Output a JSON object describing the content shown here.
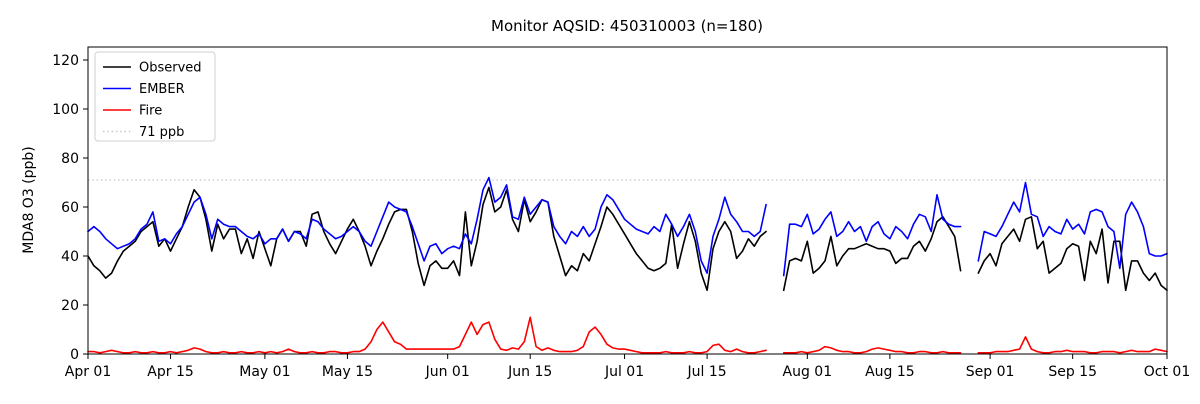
{
  "figure": {
    "title": "Monitor AQSID: 450310003 (n=180)"
  },
  "chart_data": {
    "type": "line",
    "title": "Monitor AQSID: 450310003 (n=180)",
    "xlabel": "",
    "ylabel": "MDA8 O3 (ppb)",
    "ylim": [
      0,
      125.3
    ],
    "yticks": [
      0,
      20,
      40,
      60,
      80,
      100,
      120
    ],
    "grid": false,
    "legend_position": "upper left",
    "x_start_label": "Apr 01",
    "x_end_label": "Oct 01",
    "n_days": 184,
    "x_tick_labels": [
      "Apr 01",
      "Apr 15",
      "May 01",
      "May 15",
      "Jun 01",
      "Jun 15",
      "Jul 01",
      "Jul 15",
      "Aug 01",
      "Aug 15",
      "Sep 01",
      "Sep 15",
      "Oct 01"
    ],
    "x_tick_days": [
      0,
      14,
      30,
      44,
      61,
      75,
      91,
      105,
      122,
      136,
      153,
      167,
      183
    ],
    "threshold": {
      "label": "71 ppb",
      "value": 71,
      "color": "#c9c9c9",
      "style": "dotted"
    },
    "legend_entries": [
      "Observed",
      "EMBER",
      "Fire",
      "71 ppb"
    ],
    "series": [
      {
        "name": "Observed",
        "color": "#000000",
        "values": [
          40,
          36,
          34,
          31,
          33,
          38,
          42,
          44,
          46,
          50,
          52,
          54,
          44,
          47,
          42,
          47,
          52,
          60,
          67,
          64,
          55,
          42,
          53,
          47,
          51,
          51,
          41,
          47,
          39,
          50,
          43,
          36,
          47,
          51,
          46,
          50,
          50,
          44,
          57,
          58,
          50,
          45,
          41,
          46,
          51,
          55,
          50,
          44,
          36,
          42,
          47,
          53,
          58,
          59,
          59,
          50,
          37,
          28,
          36,
          38,
          35,
          35,
          38,
          32,
          58,
          36,
          46,
          61,
          68,
          58,
          60,
          67,
          55,
          50,
          63,
          54,
          58,
          63,
          62,
          48,
          40,
          32,
          36,
          34,
          41,
          38,
          45,
          52,
          60,
          57,
          53,
          49,
          45,
          41,
          38,
          35,
          34,
          35,
          37,
          53,
          35,
          45,
          54,
          46,
          33,
          26,
          43,
          50,
          54,
          50,
          39,
          42,
          47,
          44,
          48,
          50,
          null,
          null,
          26,
          38,
          39,
          38,
          46,
          33,
          35,
          38,
          48,
          36,
          40,
          43,
          43,
          44,
          45,
          44,
          43,
          43,
          42,
          37,
          39,
          39,
          44,
          46,
          42,
          47,
          54,
          56,
          52,
          48,
          34,
          null,
          null,
          33,
          38,
          41,
          36,
          45,
          48,
          51,
          46,
          55,
          56,
          43,
          46,
          33,
          35,
          37,
          43,
          45,
          44,
          30,
          46,
          41,
          51,
          29,
          46,
          46,
          26,
          38,
          38,
          33,
          30,
          33,
          28,
          26
        ]
      },
      {
        "name": "EMBER",
        "color": "#0000ff",
        "values": [
          50,
          52,
          50,
          47,
          45,
          43,
          44,
          45,
          47,
          51,
          53,
          58,
          46,
          47,
          45,
          49,
          52,
          57,
          62,
          64,
          57,
          47,
          55,
          53,
          52,
          52,
          50,
          48,
          47,
          49,
          45,
          47,
          47,
          51,
          46,
          50,
          49,
          47,
          55,
          54,
          51,
          49,
          47,
          48,
          50,
          52,
          50,
          46,
          44,
          50,
          56,
          62,
          60,
          59,
          58,
          52,
          45,
          38,
          44,
          45,
          41,
          43,
          44,
          43,
          49,
          45,
          55,
          67,
          72,
          62,
          64,
          69,
          56,
          55,
          64,
          57,
          60,
          63,
          62,
          52,
          48,
          45,
          50,
          48,
          52,
          48,
          51,
          60,
          65,
          63,
          59,
          55,
          53,
          51,
          50,
          49,
          52,
          50,
          57,
          53,
          48,
          52,
          57,
          50,
          38,
          33,
          48,
          55,
          64,
          57,
          54,
          50,
          50,
          48,
          50,
          61,
          null,
          null,
          32,
          53,
          53,
          52,
          57,
          49,
          51,
          55,
          58,
          48,
          50,
          54,
          50,
          52,
          46,
          52,
          54,
          49,
          47,
          52,
          50,
          47,
          53,
          57,
          56,
          50,
          65,
          55,
          53,
          52,
          52,
          null,
          null,
          38,
          50,
          49,
          48,
          52,
          57,
          62,
          58,
          70,
          57,
          56,
          48,
          52,
          50,
          49,
          55,
          51,
          53,
          49,
          58,
          59,
          58,
          52,
          50,
          35,
          57,
          62,
          58,
          52,
          41,
          40,
          40,
          41
        ]
      },
      {
        "name": "Fire",
        "color": "#ff0000",
        "values": [
          1,
          1,
          0.5,
          1,
          1.5,
          1,
          0.5,
          0.5,
          1,
          0.5,
          0.5,
          1,
          0.5,
          0.5,
          1,
          0.5,
          1,
          1.5,
          2.5,
          2,
          1,
          0.5,
          0.5,
          1,
          0.5,
          0.5,
          1,
          0.5,
          0.5,
          1,
          0.5,
          1,
          0.5,
          1,
          2,
          1,
          0.5,
          0.5,
          1,
          0.5,
          0.5,
          1,
          1,
          0.5,
          0.5,
          1,
          1,
          2,
          5,
          10,
          13,
          9,
          5,
          4,
          2,
          2,
          2,
          2,
          2,
          2,
          2,
          2,
          2,
          3,
          8,
          13,
          8,
          12,
          13,
          6,
          2,
          1.5,
          2.5,
          2,
          5,
          15,
          3,
          1.5,
          2.5,
          1.5,
          1,
          1,
          1,
          1.5,
          3,
          9,
          11,
          8,
          4,
          2.5,
          2,
          2,
          1.5,
          1,
          0.5,
          0.5,
          0.5,
          0.5,
          1,
          0.5,
          0.5,
          0.5,
          1,
          0.5,
          0.5,
          1,
          3.5,
          4,
          1.5,
          1,
          2,
          1,
          0.5,
          0.5,
          1,
          1.5,
          null,
          null,
          0.5,
          0.5,
          0.5,
          1,
          0.5,
          1,
          1.5,
          3,
          2.5,
          1.5,
          1,
          1,
          0.5,
          0.5,
          1,
          2,
          2.5,
          2,
          1.5,
          1,
          1,
          0.5,
          0.5,
          1,
          1,
          0.5,
          0.5,
          1,
          0.5,
          0.5,
          0.5,
          null,
          null,
          0.5,
          0.5,
          0.5,
          1,
          1,
          1,
          1.5,
          2,
          7,
          2,
          1,
          0.5,
          0.5,
          1,
          1,
          1.5,
          1,
          1,
          1,
          0.5,
          0.5,
          1,
          1,
          1,
          0.5,
          1,
          1.5,
          1,
          1,
          1,
          2,
          1.5,
          1
        ]
      }
    ]
  }
}
